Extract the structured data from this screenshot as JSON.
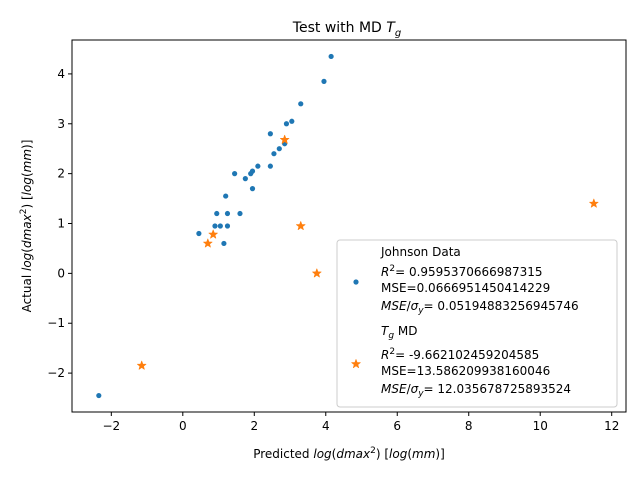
{
  "chart_data": {
    "type": "scatter",
    "title": "Test with MD",
    "title_symbol": "T",
    "title_symbol_sub": "g",
    "xlabel": "Predicted log(dmax²) [log(mm)]",
    "ylabel": "Actual log(dmax²) [log(mm)]",
    "xlim": [
      -3.1,
      12.4
    ],
    "ylim": [
      -2.78,
      4.68
    ],
    "xticks": [
      -2,
      0,
      2,
      4,
      6,
      8,
      10,
      12
    ],
    "yticks": [
      -2,
      -1,
      0,
      1,
      2,
      3,
      4
    ],
    "xtick_labels": [
      "−2",
      "0",
      "2",
      "4",
      "6",
      "8",
      "10",
      "12"
    ],
    "ytick_labels": [
      "−2",
      "−1",
      "0",
      "1",
      "2",
      "3",
      "4"
    ],
    "grid": false,
    "legend_position": "lower-right",
    "series": [
      {
        "name": "Johnson Data",
        "marker": "circle",
        "color": "#1f77b4",
        "r2_label": "R",
        "r2_value": "= 0.9595370666987315",
        "mse": "MSE=0.0666951450414229",
        "mse_sigma_value": "= 0.05194883256945746",
        "points": [
          [
            -2.35,
            -2.45
          ],
          [
            0.45,
            0.8
          ],
          [
            0.9,
            0.95
          ],
          [
            0.95,
            1.2
          ],
          [
            1.05,
            0.95
          ],
          [
            1.15,
            0.6
          ],
          [
            1.25,
            0.95
          ],
          [
            1.25,
            1.2
          ],
          [
            1.2,
            1.55
          ],
          [
            1.45,
            2.0
          ],
          [
            1.6,
            1.2
          ],
          [
            1.75,
            1.9
          ],
          [
            1.9,
            2.0
          ],
          [
            1.95,
            2.05
          ],
          [
            1.95,
            1.7
          ],
          [
            2.1,
            2.15
          ],
          [
            2.45,
            2.15
          ],
          [
            2.45,
            2.8
          ],
          [
            2.55,
            2.4
          ],
          [
            2.7,
            2.5
          ],
          [
            2.85,
            2.6
          ],
          [
            2.9,
            3.0
          ],
          [
            3.05,
            3.05
          ],
          [
            3.3,
            3.4
          ],
          [
            3.95,
            3.85
          ],
          [
            4.15,
            4.35
          ]
        ]
      },
      {
        "name": "MD",
        "name_symbol": "T",
        "name_symbol_sub": "g",
        "marker": "star",
        "color": "#ff7f0e",
        "r2_label": "R",
        "r2_value": "= -9.662102459204585",
        "mse": "MSE=13.586209938160046",
        "mse_sigma_value": "= 12.035678725893524",
        "points": [
          [
            -1.15,
            -1.85
          ],
          [
            0.7,
            0.6
          ],
          [
            0.85,
            0.78
          ],
          [
            2.85,
            2.68
          ],
          [
            3.3,
            0.95
          ],
          [
            3.75,
            0.0
          ],
          [
            11.5,
            1.4
          ]
        ]
      }
    ]
  }
}
